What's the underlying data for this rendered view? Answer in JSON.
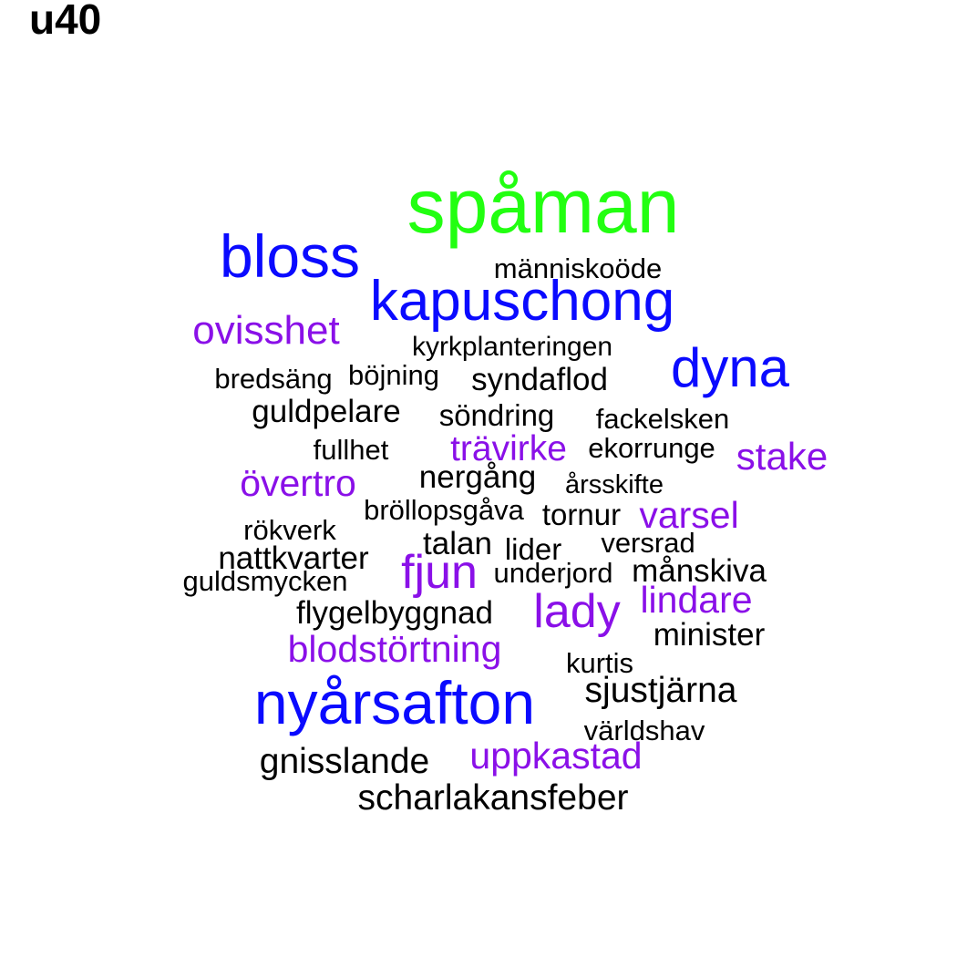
{
  "title": "u40",
  "palette": {
    "green": "#22ff11",
    "blue": "#0a0aff",
    "purple": "#8a10e8",
    "black": "#000000"
  },
  "words": [
    {
      "text": "spåman",
      "color": "green"
    },
    {
      "text": "bloss",
      "color": "blue"
    },
    {
      "text": "människoöde",
      "color": "black"
    },
    {
      "text": "kapuschong",
      "color": "blue"
    },
    {
      "text": "ovisshet",
      "color": "purple"
    },
    {
      "text": "kyrkplanteringen",
      "color": "black"
    },
    {
      "text": "dyna",
      "color": "blue"
    },
    {
      "text": "bredsäng",
      "color": "black"
    },
    {
      "text": "böjning",
      "color": "black"
    },
    {
      "text": "syndaflod",
      "color": "black"
    },
    {
      "text": "guldpelare",
      "color": "black"
    },
    {
      "text": "söndring",
      "color": "black"
    },
    {
      "text": "fackelsken",
      "color": "black"
    },
    {
      "text": "fullhet",
      "color": "black"
    },
    {
      "text": "trävirke",
      "color": "purple"
    },
    {
      "text": "ekorrunge",
      "color": "black"
    },
    {
      "text": "stake",
      "color": "purple"
    },
    {
      "text": "övertro",
      "color": "purple"
    },
    {
      "text": "nergång",
      "color": "black"
    },
    {
      "text": "årsskifte",
      "color": "black"
    },
    {
      "text": "bröllopsgåva",
      "color": "black"
    },
    {
      "text": "tornur",
      "color": "black"
    },
    {
      "text": "varsel",
      "color": "purple"
    },
    {
      "text": "rökverk",
      "color": "black"
    },
    {
      "text": "talan",
      "color": "black"
    },
    {
      "text": "lider",
      "color": "black"
    },
    {
      "text": "versrad",
      "color": "black"
    },
    {
      "text": "nattkvarter",
      "color": "black"
    },
    {
      "text": "fjun",
      "color": "purple"
    },
    {
      "text": "underjord",
      "color": "black"
    },
    {
      "text": "månskiva",
      "color": "black"
    },
    {
      "text": "guldsmycken",
      "color": "black"
    },
    {
      "text": "lindare",
      "color": "purple"
    },
    {
      "text": "lady",
      "color": "purple"
    },
    {
      "text": "flygelbyggnad",
      "color": "black"
    },
    {
      "text": "minister",
      "color": "black"
    },
    {
      "text": "blodstörtning",
      "color": "purple"
    },
    {
      "text": "kurtis",
      "color": "black"
    },
    {
      "text": "nyårsafton",
      "color": "blue"
    },
    {
      "text": "sjustjärna",
      "color": "black"
    },
    {
      "text": "världshav",
      "color": "black"
    },
    {
      "text": "uppkastad",
      "color": "purple"
    },
    {
      "text": "gnisslande",
      "color": "black"
    },
    {
      "text": "scharlakansfeber",
      "color": "black"
    }
  ]
}
